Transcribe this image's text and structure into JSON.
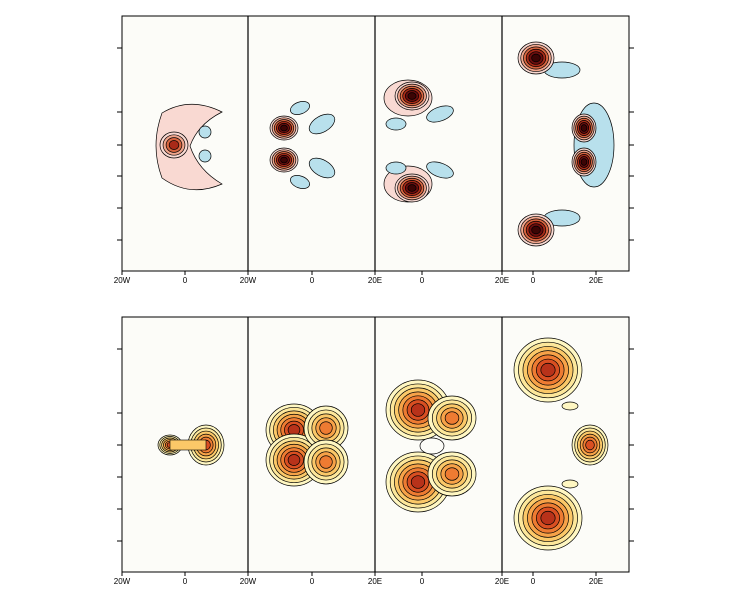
{
  "figure": {
    "colors": {
      "panel_bg": "#fcfcf8",
      "frame": "#000000",
      "contour_line": "#000000",
      "anomaly_positive_scale": [
        "#f9d9d2",
        "#f0a58c",
        "#d76540",
        "#a82a18",
        "#6b0e0e",
        "#3c0505"
      ],
      "anomaly_negative_fill": "#b8e0ec",
      "magnitude_scale": [
        "#fff7c2",
        "#fde79a",
        "#fbc868",
        "#f7a248",
        "#ee7b32",
        "#d94f22",
        "#b8321a"
      ]
    }
  },
  "chart_data": [
    {
      "type": "heatmap",
      "title": "",
      "contour_style": "filled-contours-with-black-isolines",
      "x_tick_labels": [
        [
          "20W",
          "0"
        ],
        [
          "20W",
          "0"
        ],
        [
          "20E",
          "0"
        ],
        [
          "20E",
          "0",
          "20E"
        ]
      ],
      "y_tick_labels": [],
      "panels": [
        {
          "features": [
            {
              "shape": "crescent",
              "sign": "positive",
              "x": -5,
              "y": 0,
              "level": 6
            },
            {
              "shape": "broad-ring",
              "sign": "positive",
              "x": 0,
              "y": 0,
              "level": 1
            },
            {
              "shape": "pair",
              "sign": "negative",
              "x": 8,
              "y": 0,
              "level": 1
            }
          ]
        },
        {
          "features": [
            {
              "shape": "double-lobe",
              "sign": "positive",
              "x": -8,
              "y": 0,
              "level": 6
            },
            {
              "shape": "four-arms",
              "sign": "negative",
              "x": 6,
              "y": 0,
              "level": 1
            }
          ]
        },
        {
          "features": [
            {
              "shape": "crescent-pair",
              "sign": "positive",
              "x": 0,
              "y": 0,
              "level": 6
            },
            {
              "shape": "lobes",
              "sign": "negative",
              "x": 0,
              "y": 0,
              "level": 1
            }
          ]
        },
        {
          "features": [
            {
              "shape": "crescent-trio",
              "sign": "positive",
              "x": 5,
              "y": 0,
              "level": 6
            },
            {
              "shape": "lobes",
              "sign": "negative",
              "x": 5,
              "y": 0,
              "level": 1
            }
          ]
        }
      ]
    },
    {
      "type": "heatmap",
      "title": "",
      "contour_style": "filled-contours-with-black-isolines",
      "x_tick_labels": [
        [
          "20W",
          "0"
        ],
        [
          "20W",
          "0"
        ],
        [
          "20E",
          "0"
        ],
        [
          "20E",
          "0",
          "20E"
        ]
      ],
      "y_tick_labels": [],
      "panels": [
        {
          "features": [
            {
              "shape": "dumbbell",
              "x": 0,
              "y": 0,
              "level": 6
            }
          ]
        },
        {
          "features": [
            {
              "shape": "butterfly",
              "x": 0,
              "y": 0,
              "level": 7
            }
          ]
        },
        {
          "features": [
            {
              "shape": "split-blob",
              "x": 0,
              "y": 0,
              "level": 7
            }
          ]
        },
        {
          "features": [
            {
              "shape": "triple-blob",
              "x": 0,
              "y": 0,
              "level": 7
            }
          ]
        }
      ]
    }
  ]
}
